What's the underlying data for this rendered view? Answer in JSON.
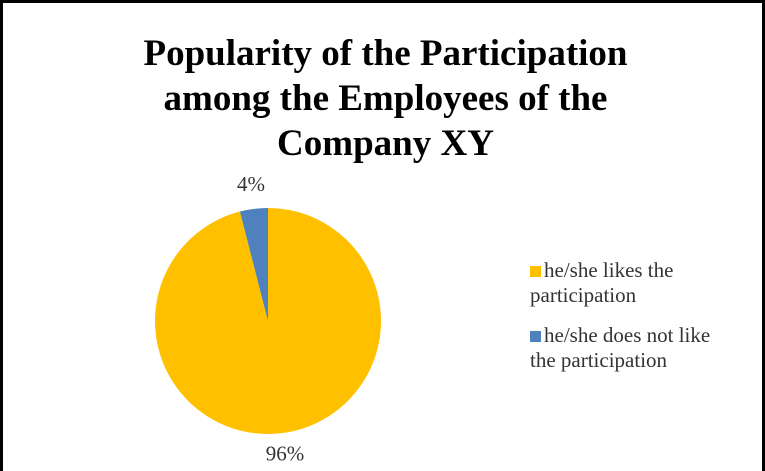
{
  "chart_data": {
    "type": "pie",
    "title": "Popularity of the Participation among the Employees of the Company XY",
    "categories": [
      "he/she likes the participation",
      "he/she does not like the participation"
    ],
    "values": [
      96,
      4
    ],
    "value_labels": [
      "96%",
      "4%"
    ],
    "colors": [
      "#FFC000",
      "#4F81BD"
    ],
    "legend": "right"
  }
}
